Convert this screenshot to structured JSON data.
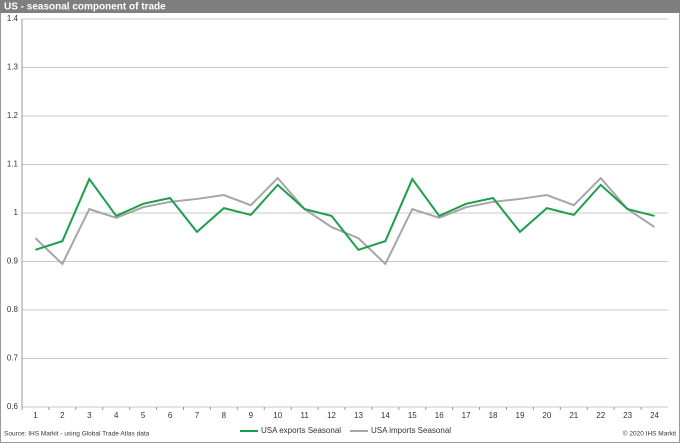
{
  "chart_data": {
    "type": "line",
    "title": "US - seasonal component of trade",
    "categories": [
      "1",
      "2",
      "3",
      "4",
      "5",
      "6",
      "7",
      "8",
      "9",
      "10",
      "11",
      "12",
      "13",
      "14",
      "15",
      "16",
      "17",
      "18",
      "19",
      "20",
      "21",
      "22",
      "23",
      "24"
    ],
    "series": [
      {
        "name": "USA exports Seasonal",
        "color": "#1e9e4a",
        "values": [
          0.924,
          0.942,
          1.07,
          0.994,
          1.019,
          1.031,
          0.961,
          1.01,
          0.996,
          1.058,
          1.008,
          0.994,
          0.924,
          0.942,
          1.07,
          0.994,
          1.019,
          1.031,
          0.961,
          1.01,
          0.996,
          1.058,
          1.008,
          0.994
        ]
      },
      {
        "name": "USA imports Seasonal",
        "color": "#a6a6a6",
        "values": [
          0.948,
          0.895,
          1.008,
          0.99,
          1.012,
          1.023,
          1.029,
          1.037,
          1.016,
          1.072,
          1.008,
          0.971,
          0.948,
          0.895,
          1.008,
          0.99,
          1.012,
          1.023,
          1.029,
          1.037,
          1.016,
          1.072,
          1.008,
          0.971
        ]
      }
    ],
    "ylim": [
      0.6,
      1.4
    ],
    "yticks": [
      0.6,
      0.7,
      0.8,
      0.9,
      1,
      1.1,
      1.2,
      1.3,
      1.4
    ],
    "grid": true,
    "source": "Source: IHS Markit - using Global Trade Atlas data",
    "copyright": "© 2020 IHS Markit"
  }
}
